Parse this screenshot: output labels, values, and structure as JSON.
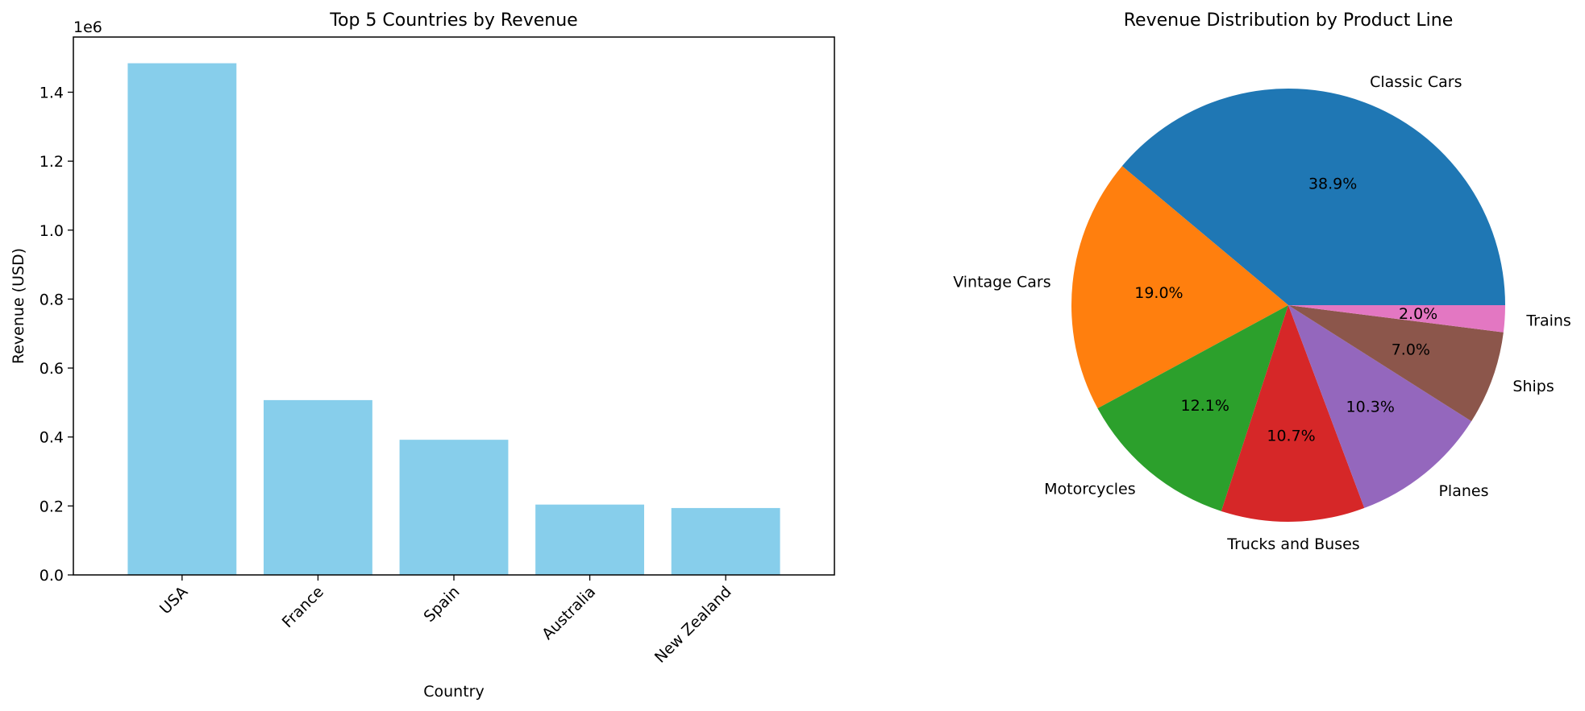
{
  "chart_data": [
    {
      "type": "bar",
      "title": "Top 5 Countries by Revenue",
      "xlabel": "Country",
      "ylabel": "Revenue (USD)",
      "y_offset_label": "1e6",
      "categories": [
        "USA",
        "France",
        "Spain",
        "Australia",
        "New Zealand"
      ],
      "values": [
        1484000,
        507000,
        392000,
        204000,
        194000
      ],
      "ylim": [
        0,
        1560000
      ],
      "yticks": [
        0,
        200000,
        400000,
        600000,
        800000,
        1000000,
        1200000,
        1400000
      ],
      "ytick_labels": [
        "0.0",
        "0.2",
        "0.4",
        "0.6",
        "0.8",
        "1.0",
        "1.2",
        "1.4"
      ],
      "grid": false,
      "bar_color": "#87CEEB"
    },
    {
      "type": "pie",
      "title": "Revenue Distribution by Product Line",
      "slices": [
        {
          "label": "Classic Cars",
          "percent": 38.9,
          "pct_label": "38.9%",
          "color": "#1f77b4"
        },
        {
          "label": "Vintage Cars",
          "percent": 19.0,
          "pct_label": "19.0%",
          "color": "#ff7f0e"
        },
        {
          "label": "Motorcycles",
          "percent": 12.1,
          "pct_label": "12.1%",
          "color": "#2ca02c"
        },
        {
          "label": "Trucks and Buses",
          "percent": 10.7,
          "pct_label": "10.7%",
          "color": "#d62728"
        },
        {
          "label": "Planes",
          "percent": 10.3,
          "pct_label": "10.3%",
          "color": "#9467bd"
        },
        {
          "label": "Ships",
          "percent": 7.0,
          "pct_label": "7.0%",
          "color": "#8c564b"
        },
        {
          "label": "Trains",
          "percent": 2.0,
          "pct_label": "2.0%",
          "color": "#e377c2"
        }
      ],
      "start_angle_deg": 0,
      "direction": "counterclockwise"
    }
  ]
}
